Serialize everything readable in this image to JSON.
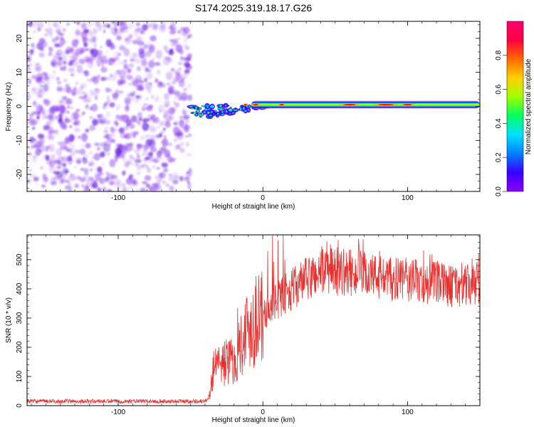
{
  "title": "S174.2025.319.18.17.G26",
  "colors": {
    "signal_line": "#e8312f",
    "noise": "#7a2be0",
    "colorbar_stops": [
      "#8a00ff",
      "#3a00ff",
      "#0080ff",
      "#00e0ff",
      "#00ff60",
      "#a0ff00",
      "#ffd000",
      "#ff6a00",
      "#ff0040",
      "#ff0070"
    ]
  },
  "chart_data": [
    {
      "type": "heatmap",
      "name": "spectrogram",
      "xlabel": "Height of straight line (km)",
      "ylabel": "Frequency (Hz)",
      "xlim": [
        -163,
        150
      ],
      "ylim": [
        -25,
        25
      ],
      "x_ticks": [
        -100,
        0,
        100
      ],
      "y_ticks": [
        20,
        10,
        0,
        -10,
        -20
      ],
      "noise_region_x": [
        -163,
        -50
      ],
      "signal_start_x": -50,
      "signal_freq_hz": 0.5,
      "colorbar": {
        "label": "Normalized spectral amplitude",
        "range": [
          0.0,
          1.0
        ],
        "ticks": [
          "0.0",
          "0.2",
          "0.4",
          "0.6",
          "0.8"
        ]
      }
    },
    {
      "type": "line",
      "name": "snr",
      "xlabel": "Height of straight line (km)",
      "ylabel": "SNR (10 * v/v)",
      "xlim": [
        -163,
        150
      ],
      "ylim": [
        0,
        585
      ],
      "x_ticks": [
        -100,
        0,
        100
      ],
      "y_ticks": [
        0,
        100,
        200,
        300,
        400,
        500
      ],
      "envelope": {
        "x": [
          -163,
          -40,
          -37,
          -33,
          -30,
          -25,
          -20,
          -15,
          -10,
          0,
          5,
          10,
          20,
          30,
          40,
          50,
          60,
          70,
          80,
          90,
          100,
          110,
          120,
          130,
          140,
          150
        ],
        "y": [
          15,
          15,
          30,
          170,
          140,
          150,
          150,
          220,
          270,
          300,
          340,
          360,
          400,
          430,
          460,
          460,
          455,
          450,
          440,
          430,
          430,
          420,
          420,
          410,
          410,
          410
        ]
      }
    }
  ]
}
